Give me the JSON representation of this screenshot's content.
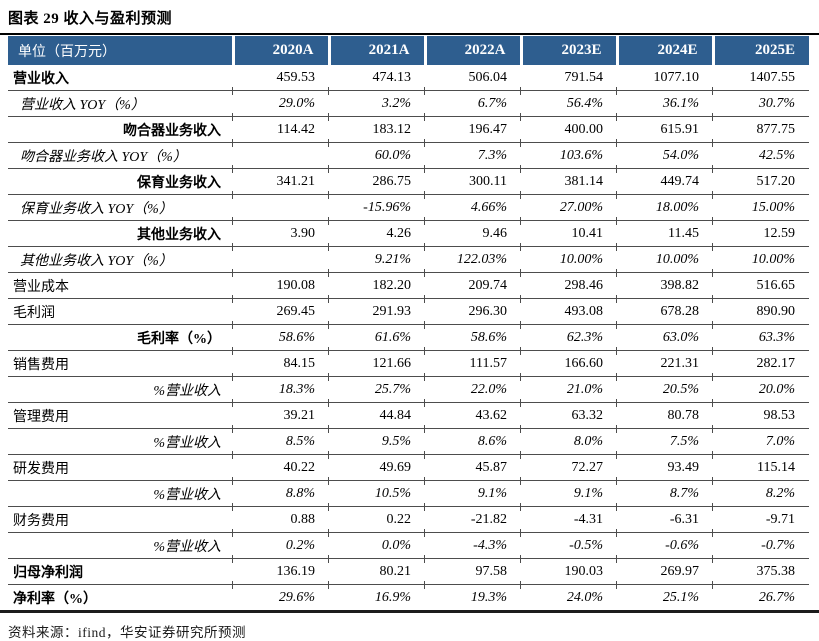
{
  "figure": {
    "title": "图表 29 收入与盈利预测"
  },
  "source_note": "资料来源：ifind，华安证券研究所预测",
  "colors": {
    "header_bg": "#2E5E8F",
    "header_text": "#FFFFFF",
    "row_border": "#4D4D4D",
    "rule_black": "#000000"
  },
  "table": {
    "columns": [
      "单位（百万元）",
      "2020A",
      "2021A",
      "2022A",
      "2023E",
      "2024E",
      "2025E"
    ],
    "rows": [
      {
        "label": "营业收入",
        "label_style": "bold",
        "label_align": "left",
        "values_italic": false,
        "values": [
          "459.53",
          "474.13",
          "506.04",
          "791.54",
          "1077.10",
          "1407.55"
        ]
      },
      {
        "label": "营业收入 YOY（%）",
        "label_style": "italic",
        "label_align": "left",
        "values_italic": true,
        "values": [
          "29.0%",
          "3.2%",
          "6.7%",
          "56.4%",
          "36.1%",
          "30.7%"
        ]
      },
      {
        "label": "吻合器业务收入",
        "label_style": "bold",
        "label_align": "right",
        "values_italic": false,
        "values": [
          "114.42",
          "183.12",
          "196.47",
          "400.00",
          "615.91",
          "877.75"
        ]
      },
      {
        "label": "吻合器业务收入 YOY（%）",
        "label_style": "italic",
        "label_align": "left",
        "values_italic": true,
        "values": [
          "",
          "60.0%",
          "7.3%",
          "103.6%",
          "54.0%",
          "42.5%"
        ]
      },
      {
        "label": "保育业务收入",
        "label_style": "bold",
        "label_align": "right",
        "values_italic": false,
        "values": [
          "341.21",
          "286.75",
          "300.11",
          "381.14",
          "449.74",
          "517.20"
        ]
      },
      {
        "label": "保育业务收入 YOY（%）",
        "label_style": "italic",
        "label_align": "left",
        "values_italic": true,
        "values": [
          "",
          "-15.96%",
          "4.66%",
          "27.00%",
          "18.00%",
          "15.00%"
        ]
      },
      {
        "label": "其他业务收入",
        "label_style": "bold",
        "label_align": "right",
        "values_italic": false,
        "values": [
          "3.90",
          "4.26",
          "9.46",
          "10.41",
          "11.45",
          "12.59"
        ]
      },
      {
        "label": "其他业务收入 YOY（%）",
        "label_style": "italic",
        "label_align": "left",
        "values_italic": true,
        "values": [
          "",
          "9.21%",
          "122.03%",
          "10.00%",
          "10.00%",
          "10.00%"
        ]
      },
      {
        "label": "营业成本",
        "label_style": "normal",
        "label_align": "left",
        "values_italic": false,
        "values": [
          "190.08",
          "182.20",
          "209.74",
          "298.46",
          "398.82",
          "516.65"
        ]
      },
      {
        "label": "毛利润",
        "label_style": "normal",
        "label_align": "left",
        "values_italic": false,
        "values": [
          "269.45",
          "291.93",
          "296.30",
          "493.08",
          "678.28",
          "890.90"
        ]
      },
      {
        "label": "毛利率（%）",
        "label_style": "bold",
        "label_align": "right",
        "values_italic": true,
        "values": [
          "58.6%",
          "61.6%",
          "58.6%",
          "62.3%",
          "63.0%",
          "63.3%"
        ]
      },
      {
        "label": "销售费用",
        "label_style": "normal",
        "label_align": "left",
        "values_italic": false,
        "values": [
          "84.15",
          "121.66",
          "111.57",
          "166.60",
          "221.31",
          "282.17"
        ]
      },
      {
        "label": "%营业收入",
        "label_style": "italic",
        "label_align": "right",
        "values_italic": true,
        "values": [
          "18.3%",
          "25.7%",
          "22.0%",
          "21.0%",
          "20.5%",
          "20.0%"
        ]
      },
      {
        "label": "管理费用",
        "label_style": "normal",
        "label_align": "left",
        "values_italic": false,
        "values": [
          "39.21",
          "44.84",
          "43.62",
          "63.32",
          "80.78",
          "98.53"
        ]
      },
      {
        "label": "%营业收入",
        "label_style": "italic",
        "label_align": "right",
        "values_italic": true,
        "values": [
          "8.5%",
          "9.5%",
          "8.6%",
          "8.0%",
          "7.5%",
          "7.0%"
        ]
      },
      {
        "label": "研发费用",
        "label_style": "normal",
        "label_align": "left",
        "values_italic": false,
        "values": [
          "40.22",
          "49.69",
          "45.87",
          "72.27",
          "93.49",
          "115.14"
        ]
      },
      {
        "label": "%营业收入",
        "label_style": "italic",
        "label_align": "right",
        "values_italic": true,
        "values": [
          "8.8%",
          "10.5%",
          "9.1%",
          "9.1%",
          "8.7%",
          "8.2%"
        ]
      },
      {
        "label": "财务费用",
        "label_style": "normal",
        "label_align": "left",
        "values_italic": false,
        "values": [
          "0.88",
          "0.22",
          "-21.82",
          "-4.31",
          "-6.31",
          "-9.71"
        ]
      },
      {
        "label": "%营业收入",
        "label_style": "italic",
        "label_align": "right",
        "values_italic": true,
        "values": [
          "0.2%",
          "0.0%",
          "-4.3%",
          "-0.5%",
          "-0.6%",
          "-0.7%"
        ]
      },
      {
        "label": "归母净利润",
        "label_style": "bold",
        "label_align": "left",
        "values_italic": false,
        "values": [
          "136.19",
          "80.21",
          "97.58",
          "190.03",
          "269.97",
          "375.38"
        ]
      },
      {
        "label": "净利率（%）",
        "label_style": "bold",
        "label_align": "left",
        "values_italic": true,
        "values": [
          "29.6%",
          "16.9%",
          "19.3%",
          "24.0%",
          "25.1%",
          "26.7%"
        ]
      }
    ]
  }
}
